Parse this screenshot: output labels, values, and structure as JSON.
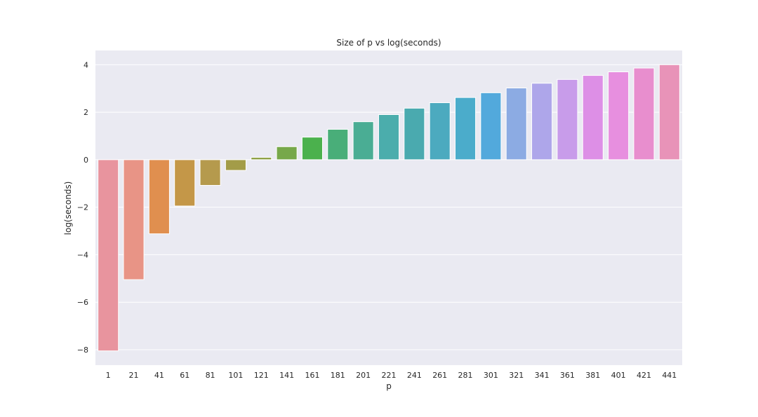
{
  "chart_data": {
    "type": "bar",
    "title": "Size of p vs log(seconds)",
    "xlabel": "p",
    "ylabel": "log(seconds)",
    "categories": [
      "1",
      "21",
      "41",
      "61",
      "81",
      "101",
      "121",
      "141",
      "161",
      "181",
      "201",
      "221",
      "241",
      "261",
      "281",
      "301",
      "321",
      "341",
      "361",
      "381",
      "401",
      "421",
      "441"
    ],
    "values": [
      -8.05,
      -5.05,
      -3.12,
      -1.95,
      -1.08,
      -0.45,
      0.1,
      0.55,
      0.95,
      1.28,
      1.6,
      1.9,
      2.17,
      2.4,
      2.62,
      2.82,
      3.02,
      3.22,
      3.38,
      3.55,
      3.7,
      3.86,
      4.0
    ],
    "colors": [
      "#e8949e",
      "#e89486",
      "#e08f4f",
      "#c49748",
      "#b59a4d",
      "#a39c48",
      "#8fa147",
      "#77a84a",
      "#4bb14d",
      "#49ae79",
      "#4aad94",
      "#4badac",
      "#4aaaaf",
      "#4caabf",
      "#4baccb",
      "#52a9dc",
      "#8cabe3",
      "#aea6ea",
      "#c89cea",
      "#dd8fe6",
      "#e78fdf",
      "#e88ece",
      "#e893b8"
    ],
    "ylim": [
      -8.65,
      4.6
    ],
    "yticks": [
      4,
      2,
      0,
      -2,
      -4,
      -6,
      -8
    ],
    "ytick_labels": [
      "4",
      "2",
      "0",
      "−2",
      "−4",
      "−6",
      "−8"
    ],
    "grid": true,
    "background": "#eaeaf2"
  }
}
